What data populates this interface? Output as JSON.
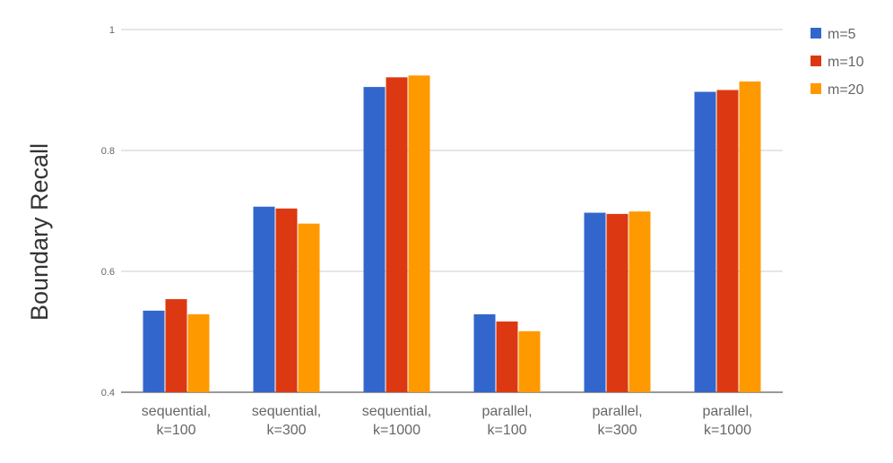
{
  "chart_data": {
    "type": "bar",
    "categories": [
      [
        "sequential,",
        "k=100"
      ],
      [
        "sequential,",
        "k=300"
      ],
      [
        "sequential,",
        "k=1000"
      ],
      [
        "parallel,",
        "k=100"
      ],
      [
        "parallel,",
        "k=300"
      ],
      [
        "parallel,",
        "k=1000"
      ]
    ],
    "series": [
      {
        "name": "m=5",
        "color": "#3366cc",
        "values": [
          0.535,
          0.707,
          0.905,
          0.529,
          0.697,
          0.897
        ]
      },
      {
        "name": "m=10",
        "color": "#dc3912",
        "values": [
          0.554,
          0.704,
          0.921,
          0.517,
          0.695,
          0.9
        ]
      },
      {
        "name": "m=20",
        "color": "#ff9900",
        "values": [
          0.529,
          0.679,
          0.924,
          0.501,
          0.699,
          0.914
        ]
      }
    ],
    "ylabel": "Boundary Recall",
    "xlabel": "",
    "ylim": [
      0.4,
      1.0
    ],
    "yticks": [
      "0.4",
      "0.6",
      "0.8",
      "1"
    ],
    "grid": true,
    "legend_position": "right"
  }
}
